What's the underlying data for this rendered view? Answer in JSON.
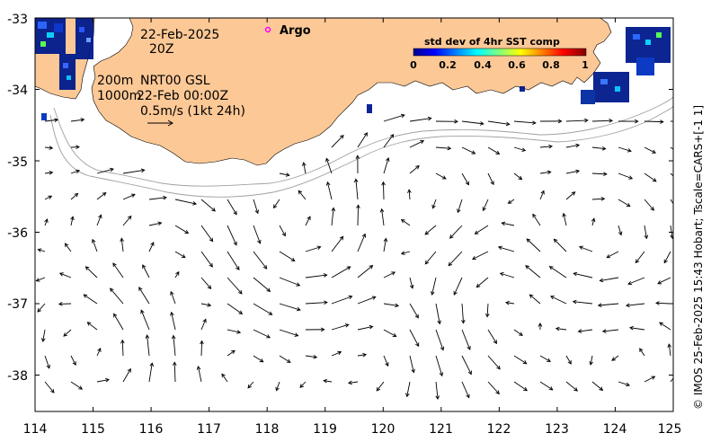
{
  "map": {
    "lon_ticks": [
      "114",
      "115",
      "116",
      "117",
      "118",
      "119",
      "120",
      "121",
      "122",
      "123",
      "124",
      "125"
    ],
    "lat_ticks": [
      "-33",
      "-34",
      "-35",
      "-36",
      "-37",
      "-38"
    ],
    "lon_range": [
      114,
      125
    ],
    "lat_range": [
      -38.5,
      -33
    ],
    "land_color": "#fcc896",
    "ocean_color": "#ffffff"
  },
  "annotations": {
    "date": "22-Feb-2025",
    "time": "20Z",
    "depth_200": "200m",
    "depth_1000": "1000m",
    "product": "NRT00 GSL",
    "product_time": "22-Feb 00:00Z",
    "scale": "0.5m/s (1kt 24h)"
  },
  "argo": {
    "label": "Argo",
    "marker_color": "#ff00ff"
  },
  "colorbar": {
    "title": "std dev of 4hr SST comp",
    "ticks": [
      "0",
      "0.2",
      "0.4",
      "0.6",
      "0.8",
      "1"
    ],
    "colormap": "jet"
  },
  "credit": "© IMOS 25-Feb-2025 15:43 Hobart; Tscale=CARS+[-1 1]"
}
